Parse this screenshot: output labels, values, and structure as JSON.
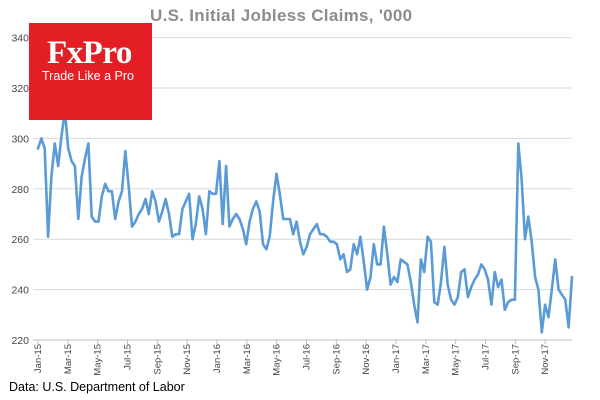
{
  "chart_data": {
    "type": "line",
    "title": "U.S. Initial Jobless Claims, '000",
    "xlabel": "",
    "ylabel": "",
    "ylim": [
      220,
      345
    ],
    "yticks": [
      220,
      240,
      260,
      280,
      300,
      320,
      340
    ],
    "xtick_labels": [
      "Jan-15",
      "Mar-15",
      "May-15",
      "Jul-15",
      "Sep-15",
      "Nov-15",
      "Jan-16",
      "Mar-16",
      "May-16",
      "Jul-16",
      "Sep-16",
      "Nov-16",
      "Jan-17",
      "Mar-17",
      "May-17",
      "Jul-17",
      "Sep-17",
      "Nov-17"
    ],
    "grid": true,
    "line_color": "#5b9bd5",
    "series": [
      {
        "values": [
          296,
          300,
          296,
          261,
          285,
          298,
          289,
          301,
          311,
          296,
          291,
          289,
          268,
          285,
          292,
          298,
          269,
          267,
          267,
          277,
          282,
          279,
          279,
          268,
          275,
          279,
          295,
          281,
          265,
          267,
          270,
          272,
          276,
          270,
          279,
          275,
          267,
          271,
          276,
          270,
          261,
          262,
          262,
          272,
          275,
          278,
          260,
          266,
          277,
          272,
          262,
          279,
          278,
          278,
          291,
          266,
          289,
          265,
          268,
          270,
          268,
          264,
          258,
          267,
          272,
          275,
          271,
          258,
          256,
          261,
          275,
          286,
          278,
          268,
          268,
          268,
          262,
          267,
          259,
          254,
          257,
          262,
          264,
          266,
          262,
          262,
          261,
          259,
          259,
          258,
          252,
          254,
          247,
          248,
          258,
          254,
          261,
          251,
          240,
          245,
          258,
          250,
          250,
          265,
          254,
          242,
          245,
          243,
          252,
          251,
          250,
          243,
          234,
          227,
          252,
          247,
          261,
          259,
          235,
          234,
          243,
          257,
          242,
          236,
          234,
          237,
          247,
          248,
          237,
          241,
          244,
          246,
          250,
          248,
          244,
          234,
          247,
          241,
          244,
          232,
          235,
          236,
          236,
          298,
          284,
          260,
          269,
          259,
          245,
          240,
          223,
          234,
          229,
          240,
          252,
          240,
          238,
          236,
          225,
          245
        ]
      }
    ]
  },
  "logo": {
    "name": "FxPro",
    "tagline": "Trade Like a Pro"
  },
  "source_note": "Data: U.S. Department of Labor"
}
